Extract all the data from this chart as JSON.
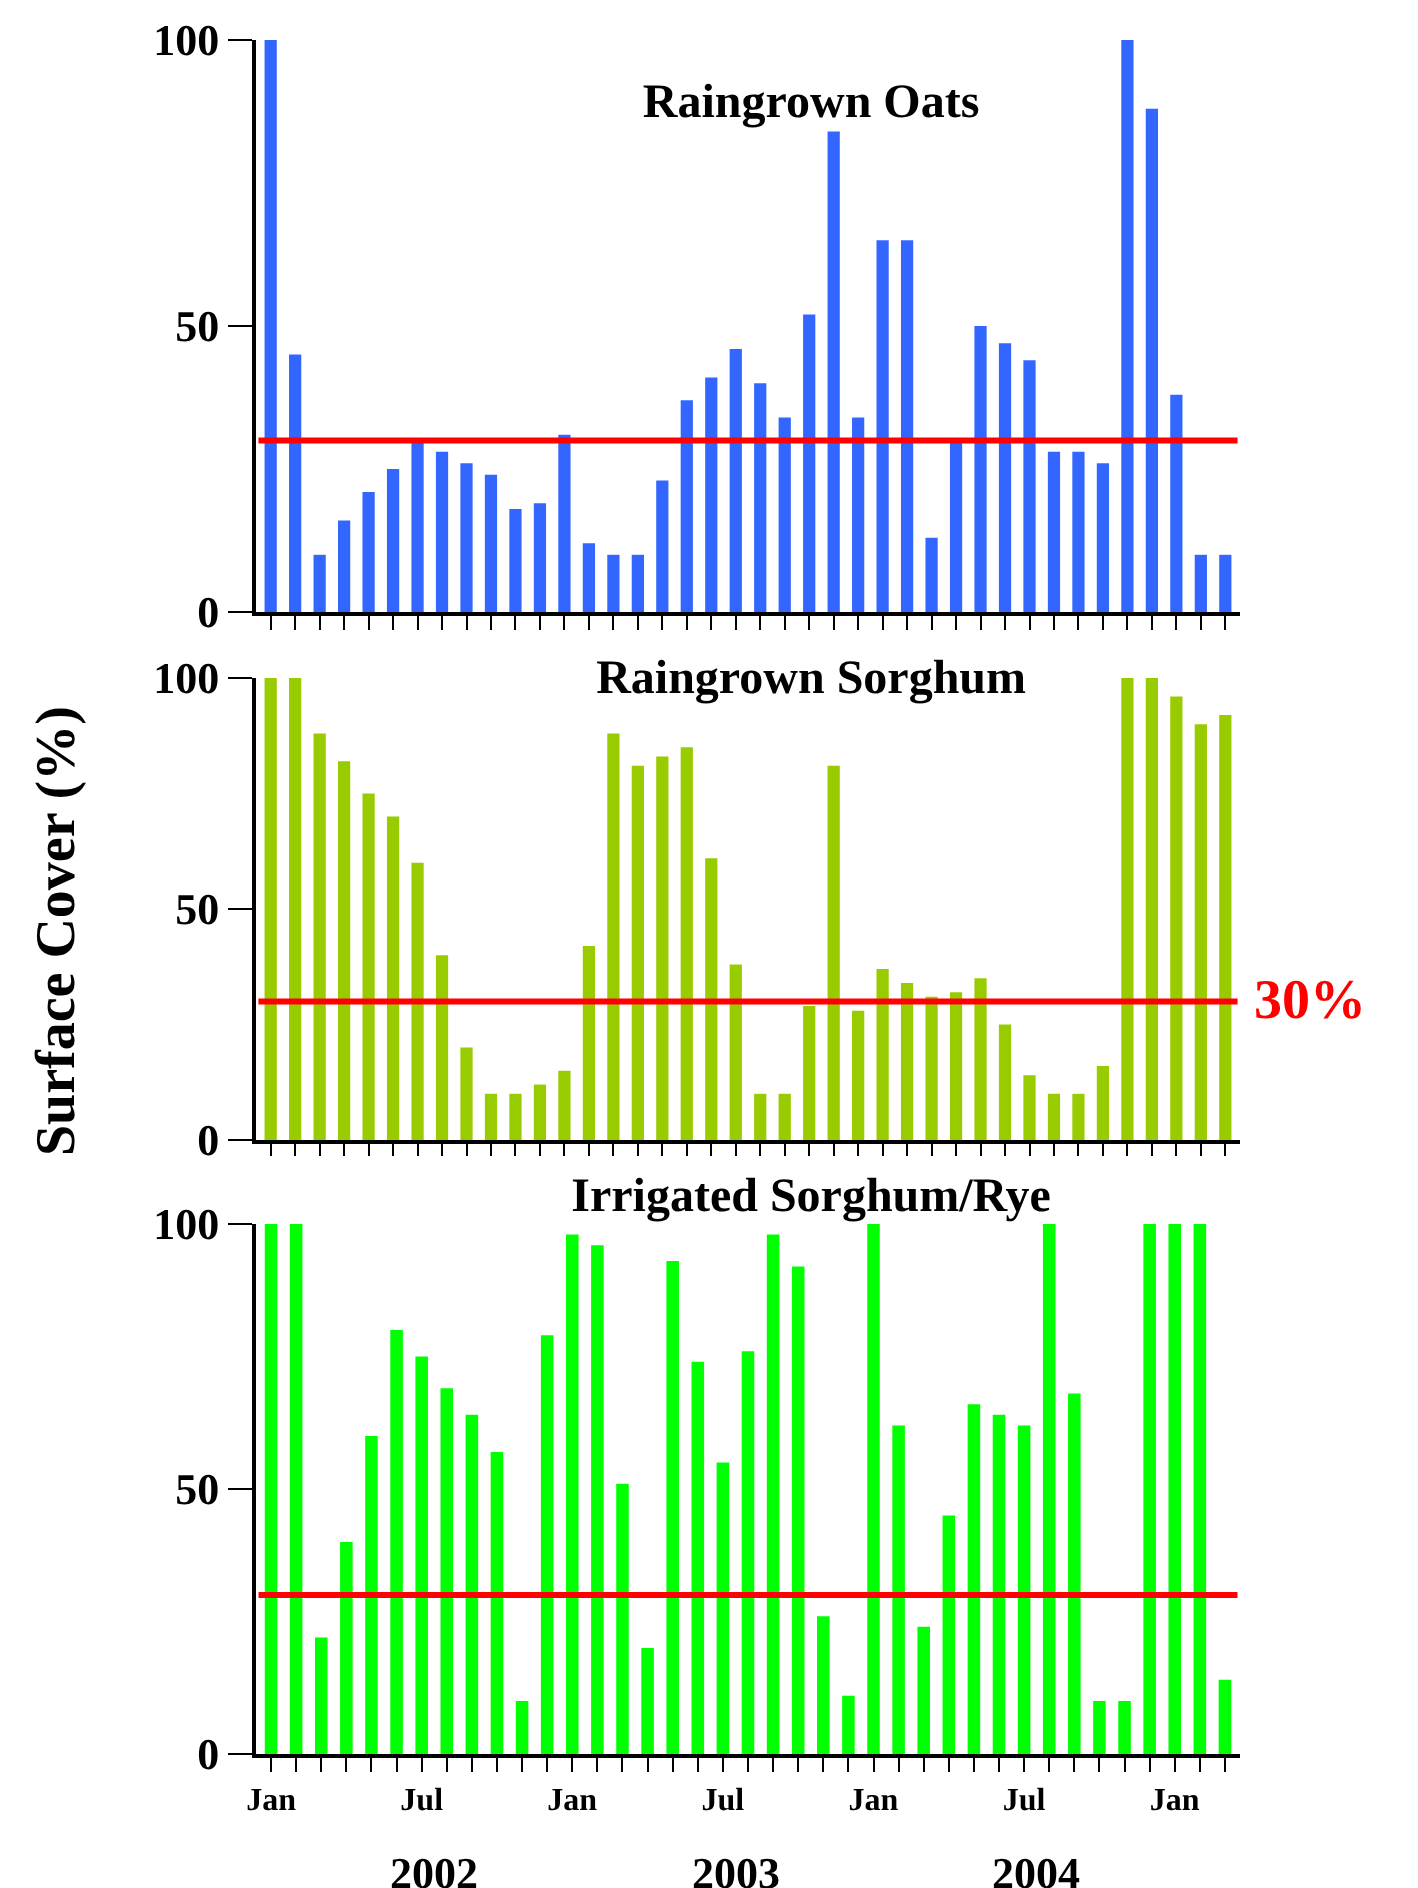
{
  "chart_data": [
    {
      "type": "bar",
      "title": "Raingrown Oats",
      "categories": [
        null,
        null,
        null,
        null,
        null,
        null,
        null,
        null,
        null,
        null,
        null,
        null,
        null,
        null,
        null,
        null,
        null,
        null,
        null,
        null,
        null,
        null,
        null,
        null,
        null,
        null,
        null,
        null,
        null,
        null,
        null,
        null,
        null,
        null,
        null,
        null,
        null,
        null,
        null,
        null
      ],
      "values": [
        100,
        45,
        10,
        16,
        21,
        25,
        30,
        28,
        26,
        24,
        18,
        19,
        31,
        12,
        10,
        10,
        23,
        37,
        41,
        46,
        40,
        34,
        52,
        84,
        34,
        65,
        65,
        13,
        30,
        50,
        47,
        44,
        28,
        28,
        26,
        100,
        88,
        38,
        10,
        10
      ],
      "color": "#3366ff",
      "ylim": [
        0,
        100
      ],
      "yticks": [
        0,
        50,
        100
      ],
      "grid": false,
      "tick_labels": "y",
      "ref_lines": [
        {
          "axis": "y",
          "value": 30,
          "color": "#ff0000"
        }
      ]
    },
    {
      "type": "bar",
      "title": "Raingrown Sorghum",
      "ylabel": "Surface Cover (%)",
      "categories": [
        null,
        null,
        null,
        null,
        null,
        null,
        null,
        null,
        null,
        null,
        null,
        null,
        null,
        null,
        null,
        null,
        null,
        null,
        null,
        null,
        null,
        null,
        null,
        null,
        null,
        null,
        null,
        null,
        null,
        null,
        null,
        null,
        null,
        null,
        null,
        null,
        null,
        null,
        null,
        null
      ],
      "values": [
        100,
        100,
        88,
        82,
        75,
        70,
        60,
        40,
        20,
        10,
        10,
        12,
        15,
        42,
        88,
        81,
        83,
        85,
        61,
        38,
        10,
        10,
        29,
        81,
        28,
        37,
        34,
        31,
        32,
        35,
        25,
        14,
        10,
        10,
        16,
        100,
        100,
        96,
        90,
        92
      ],
      "color": "#99cc00",
      "ylim": [
        0,
        100
      ],
      "yticks": [
        0,
        50,
        100
      ],
      "grid": false,
      "tick_labels": "y",
      "ref_lines": [
        {
          "axis": "y",
          "value": 30,
          "color": "#ff0000",
          "label": "30%"
        }
      ]
    },
    {
      "type": "bar",
      "title": "Irrigated Sorghum/Rye",
      "categories": [
        "Jan",
        null,
        null,
        null,
        null,
        null,
        "Jul",
        null,
        null,
        null,
        null,
        null,
        "Jan",
        null,
        null,
        null,
        null,
        null,
        "Jul",
        null,
        null,
        null,
        null,
        null,
        "Jan",
        null,
        null,
        null,
        null,
        null,
        "Jul",
        null,
        null,
        null,
        null,
        null,
        "Jan",
        null,
        null
      ],
      "values": [
        100,
        100,
        22,
        40,
        60,
        80,
        75,
        69,
        64,
        57,
        10,
        79,
        98,
        96,
        51,
        20,
        93,
        74,
        55,
        76,
        98,
        92,
        26,
        11,
        100,
        62,
        24,
        45,
        66,
        64,
        62,
        100,
        68,
        10,
        10,
        100,
        100,
        100,
        14
      ],
      "color": "#00ff00",
      "ylim": [
        0,
        100
      ],
      "yticks": [
        0,
        50,
        100
      ],
      "grid": false,
      "ref_lines": [
        {
          "axis": "y",
          "value": 30,
          "color": "#ff0000"
        }
      ],
      "annotations": [
        "2002",
        "2003",
        "2004"
      ]
    }
  ]
}
